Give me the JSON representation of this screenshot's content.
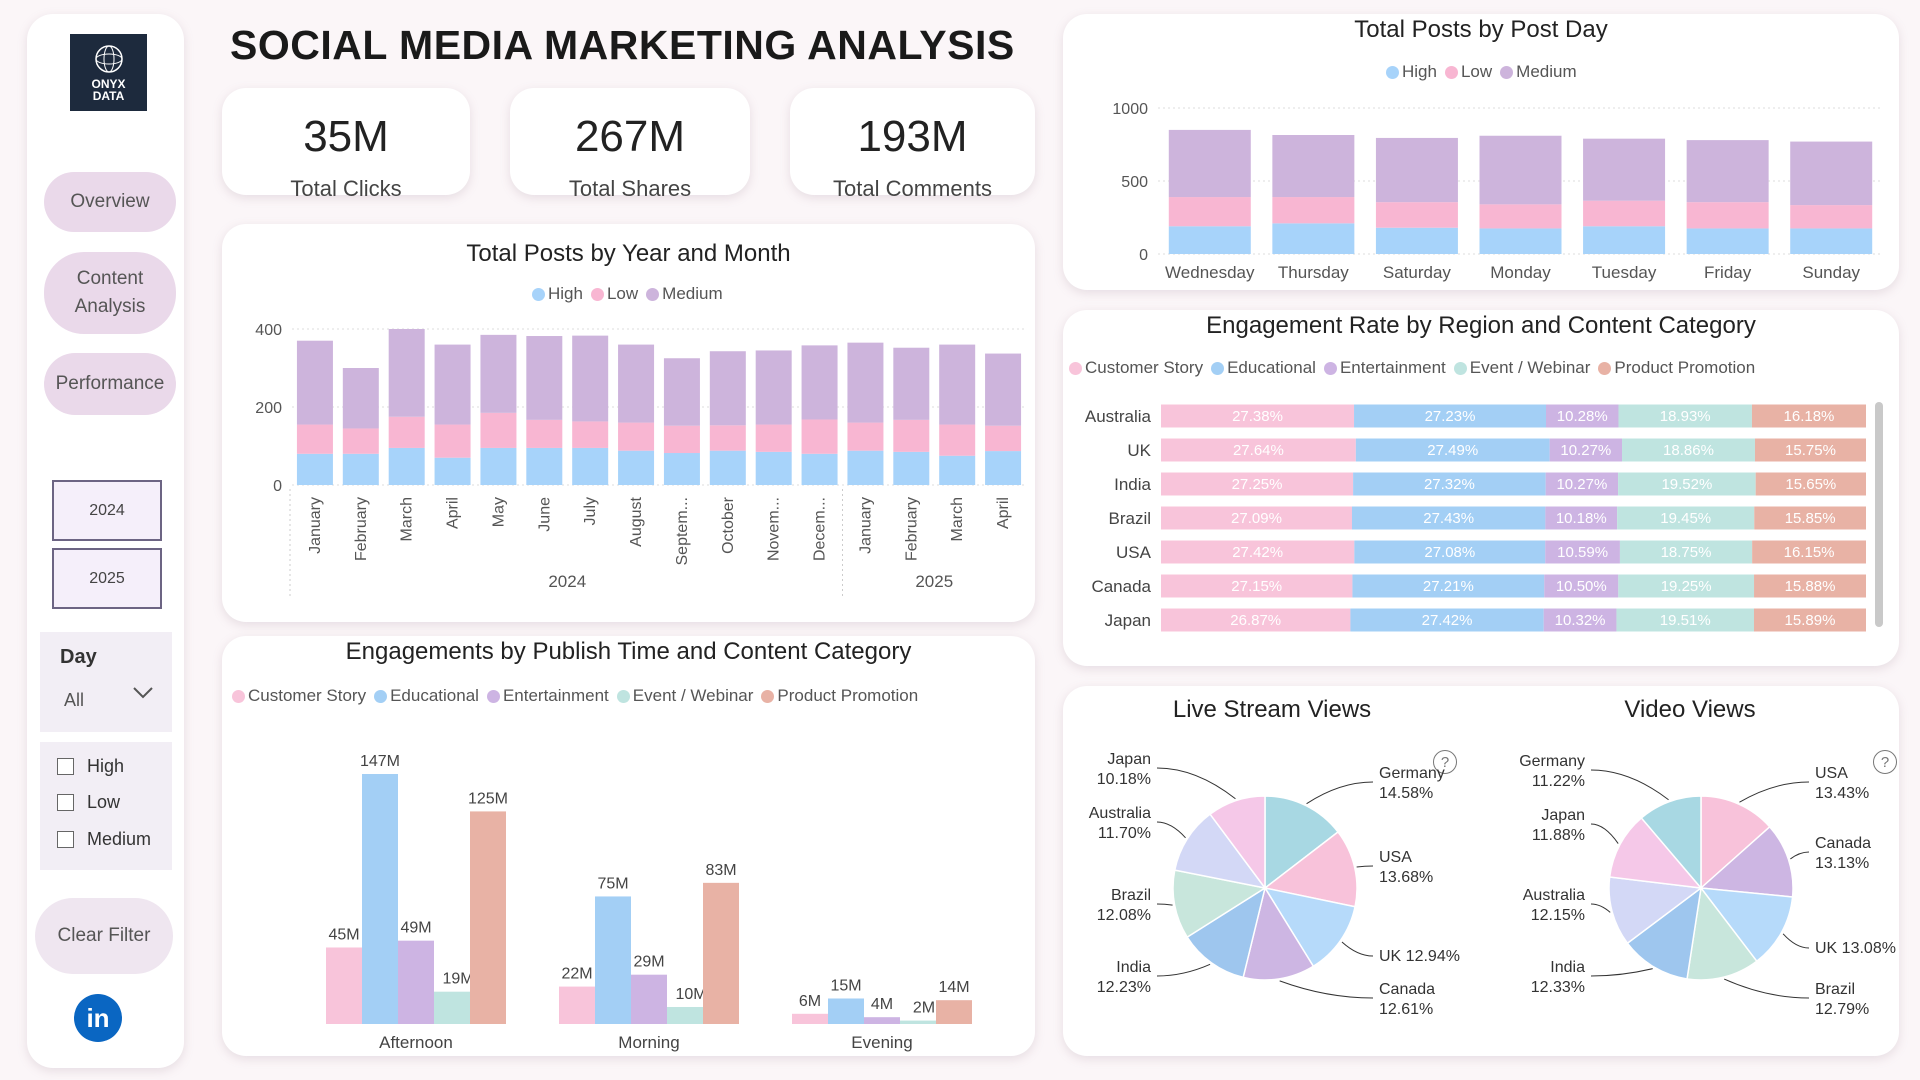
{
  "title": "SOCIAL MEDIA MARKETING ANALYSIS",
  "logo": {
    "line1": "ONYX",
    "line2": "DATA"
  },
  "nav": [
    {
      "label": "Overview"
    },
    {
      "label": "Content Analysis"
    },
    {
      "label": "Performance"
    }
  ],
  "years": [
    "2024",
    "2025"
  ],
  "day_filter": {
    "title": "Day",
    "selected": "All"
  },
  "priority_filter": [
    "High",
    "Low",
    "Medium"
  ],
  "clear_filter": "Clear Filter",
  "kpis": [
    {
      "value": "35M",
      "label": "Total Clicks"
    },
    {
      "value": "267M",
      "label": "Total Shares"
    },
    {
      "value": "193M",
      "label": "Total Comments"
    }
  ],
  "colors": {
    "High": "#a7d3fa",
    "Low": "#f8b6d2",
    "Medium": "#cdb4dc",
    "Customer Story": "#f8c4da",
    "Educational": "#a3cff5",
    "Entertainment": "#cdb4e3",
    "Event / Webinar": "#bfe4e0",
    "Product Promotion": "#e8b2a5"
  },
  "chart_data": [
    {
      "id": "posts_by_month",
      "type": "bar",
      "title": "Total Posts by Year and Month",
      "legend": [
        "High",
        "Low",
        "Medium"
      ],
      "categories": [
        "January",
        "February",
        "March",
        "April",
        "May",
        "June",
        "July",
        "August",
        "Septem...",
        "October",
        "Novem...",
        "Decem...",
        "January",
        "February",
        "March",
        "April"
      ],
      "groups": [
        {
          "label": "2024",
          "count": 12
        },
        {
          "label": "2025",
          "count": 4
        }
      ],
      "yticks": [
        0,
        200,
        400
      ],
      "ylim": [
        0,
        400
      ],
      "series": [
        {
          "name": "High",
          "values": [
            80,
            80,
            95,
            70,
            95,
            95,
            95,
            88,
            82,
            88,
            85,
            80,
            88,
            85,
            75,
            87
          ]
        },
        {
          "name": "Low",
          "values": [
            75,
            65,
            80,
            85,
            90,
            72,
            68,
            72,
            70,
            65,
            70,
            88,
            72,
            82,
            80,
            65
          ]
        },
        {
          "name": "Medium",
          "values": [
            215,
            155,
            225,
            205,
            200,
            215,
            220,
            200,
            173,
            190,
            190,
            190,
            205,
            185,
            205,
            185
          ]
        }
      ]
    },
    {
      "id": "posts_by_day",
      "type": "bar",
      "title": "Total Posts by Post Day",
      "legend": [
        "High",
        "Low",
        "Medium"
      ],
      "categories": [
        "Wednesday",
        "Thursday",
        "Saturday",
        "Monday",
        "Tuesday",
        "Friday",
        "Sunday"
      ],
      "yticks": [
        0,
        500,
        1000
      ],
      "ylim": [
        0,
        1000
      ],
      "series": [
        {
          "name": "High",
          "values": [
            190,
            210,
            180,
            175,
            190,
            175,
            175
          ]
        },
        {
          "name": "Low",
          "values": [
            200,
            180,
            175,
            165,
            175,
            180,
            160
          ]
        },
        {
          "name": "Medium",
          "values": [
            460,
            425,
            440,
            470,
            425,
            425,
            435
          ]
        }
      ]
    },
    {
      "id": "engagement_region",
      "type": "bar",
      "title": "Engagement Rate by Region and Content Category",
      "legend": [
        "Customer Story",
        "Educational",
        "Entertainment",
        "Event / Webinar",
        "Product Promotion"
      ],
      "categories": [
        "Australia",
        "UK",
        "India",
        "Brazil",
        "USA",
        "Canada",
        "Japan"
      ],
      "series": [
        {
          "name": "Customer Story",
          "values": [
            "27.38%",
            "27.64%",
            "27.25%",
            "27.09%",
            "27.42%",
            "27.15%",
            "26.87%"
          ]
        },
        {
          "name": "Educational",
          "values": [
            "27.23%",
            "27.49%",
            "27.32%",
            "27.43%",
            "27.08%",
            "27.21%",
            "27.42%"
          ]
        },
        {
          "name": "Entertainment",
          "values": [
            "10.28%",
            "10.27%",
            "10.27%",
            "10.18%",
            "10.59%",
            "10.50%",
            "10.32%"
          ]
        },
        {
          "name": "Event / Webinar",
          "values": [
            "18.93%",
            "18.86%",
            "19.52%",
            "19.45%",
            "18.75%",
            "19.25%",
            "19.51%"
          ]
        },
        {
          "name": "Product Promotion",
          "values": [
            "16.18%",
            "15.75%",
            "15.65%",
            "15.85%",
            "16.15%",
            "15.88%",
            "15.89%"
          ]
        }
      ]
    },
    {
      "id": "engagements_time",
      "type": "bar",
      "title": "Engagements by Publish Time and Content Category",
      "legend": [
        "Customer Story",
        "Educational",
        "Entertainment",
        "Event / Webinar",
        "Product Promotion"
      ],
      "categories": [
        "Afternoon",
        "Morning",
        "Evening"
      ],
      "series": [
        {
          "name": "Customer Story",
          "values": [
            45,
            22,
            6
          ],
          "labels": [
            "45M",
            "22M",
            "6M"
          ]
        },
        {
          "name": "Educational",
          "values": [
            147,
            75,
            15
          ],
          "labels": [
            "147M",
            "75M",
            "15M"
          ]
        },
        {
          "name": "Entertainment",
          "values": [
            49,
            29,
            4
          ],
          "labels": [
            "49M",
            "29M",
            "4M"
          ]
        },
        {
          "name": "Event / Webinar",
          "values": [
            19,
            10,
            2
          ],
          "labels": [
            "19M",
            "10M",
            "2M"
          ]
        },
        {
          "name": "Product Promotion",
          "values": [
            125,
            83,
            14
          ],
          "labels": [
            "125M",
            "83M",
            "14M"
          ]
        }
      ]
    },
    {
      "id": "live_stream",
      "type": "pie",
      "title": "Live Stream Views",
      "slices": [
        {
          "name": "Germany",
          "value": 14.58,
          "label": "14.58%",
          "color": "#a8d8e3"
        },
        {
          "name": "USA",
          "value": 13.68,
          "label": "13.68%",
          "color": "#f8c2da"
        },
        {
          "name": "UK",
          "value": 12.94,
          "label": "12.94%",
          "color": "#b6dafa"
        },
        {
          "name": "Canada",
          "value": 12.61,
          "label": "12.61%",
          "color": "#cdb6e3"
        },
        {
          "name": "India",
          "value": 12.23,
          "label": "12.23%",
          "color": "#9ec6ee"
        },
        {
          "name": "Brazil",
          "value": 12.08,
          "label": "12.08%",
          "color": "#c8e6dc"
        },
        {
          "name": "Australia",
          "value": 11.7,
          "label": "11.70%",
          "color": "#d3d8f6"
        },
        {
          "name": "Japan",
          "value": 10.18,
          "label": "10.18%",
          "color": "#f5c8e8"
        }
      ]
    },
    {
      "id": "video_views",
      "type": "pie",
      "title": "Video Views",
      "slices": [
        {
          "name": "USA",
          "value": 13.43,
          "label": "13.43%",
          "color": "#f8c2da"
        },
        {
          "name": "Canada",
          "value": 13.13,
          "label": "13.13%",
          "color": "#cdb6e3"
        },
        {
          "name": "UK",
          "value": 13.08,
          "label": "13.08%",
          "color": "#b6dafa"
        },
        {
          "name": "Brazil",
          "value": 12.79,
          "label": "12.79%",
          "color": "#c8e6dc"
        },
        {
          "name": "India",
          "value": 12.33,
          "label": "12.33%",
          "color": "#9ec6ee"
        },
        {
          "name": "Australia",
          "value": 12.15,
          "label": "12.15%",
          "color": "#d3d8f6"
        },
        {
          "name": "Japan",
          "value": 11.88,
          "label": "11.88%",
          "color": "#f5c8e8"
        },
        {
          "name": "Germany",
          "value": 11.22,
          "label": "11.22%",
          "color": "#a8d8e3"
        }
      ]
    }
  ]
}
